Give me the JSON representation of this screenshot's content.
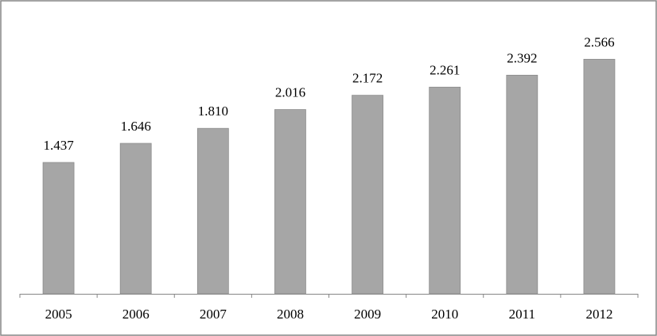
{
  "chart_data": {
    "type": "bar",
    "categories": [
      "2005",
      "2006",
      "2007",
      "2008",
      "2009",
      "2010",
      "2011",
      "2012"
    ],
    "values": [
      1.437,
      1.646,
      1.81,
      2.016,
      2.172,
      2.261,
      2.392,
      2.566
    ],
    "value_labels": [
      "1.437",
      "1.646",
      "1.810",
      "2.016",
      "2.172",
      "2.261",
      "2.392",
      "2.566"
    ],
    "color": "#a6a6a6"
  }
}
